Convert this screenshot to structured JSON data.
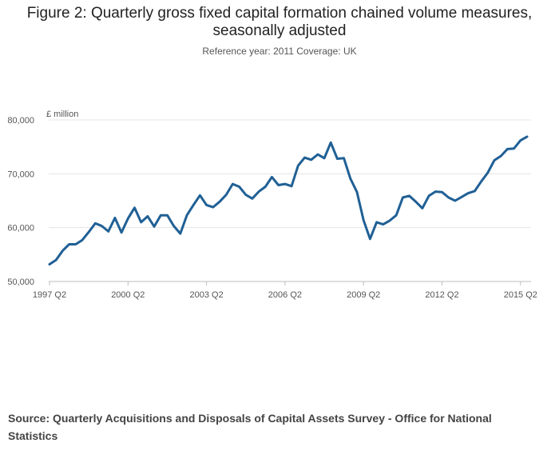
{
  "chart_data": {
    "type": "line",
    "title": "Figure 2: Quarterly gross fixed capital formation chained volume measures, seasonally adjusted",
    "subtitle": "Reference year: 2011 Coverage: UK",
    "unit_label": "£ million",
    "ylim": [
      50000,
      80000
    ],
    "yticks": [
      50000,
      60000,
      70000,
      80000
    ],
    "ytick_labels": [
      "50,000",
      "60,000",
      "70,000",
      "80,000"
    ],
    "xtick_labels": [
      "1997 Q2",
      "2000 Q2",
      "2003 Q2",
      "2006 Q2",
      "2009 Q2",
      "2012 Q2",
      "2015 Q2"
    ],
    "xtick_indices": [
      0,
      12,
      24,
      36,
      48,
      60,
      72
    ],
    "grid": true,
    "series": [
      {
        "name": "Gross fixed capital formation",
        "color": "#206095",
        "values": [
          53200,
          54000,
          55700,
          56900,
          56900,
          57700,
          59200,
          60800,
          60300,
          59300,
          61800,
          59100,
          61700,
          63700,
          61000,
          62100,
          60200,
          62300,
          62300,
          60300,
          58900,
          62300,
          64200,
          66000,
          64200,
          63800,
          64800,
          66100,
          68100,
          67600,
          66100,
          65400,
          66700,
          67600,
          69400,
          67900,
          68100,
          67700,
          71500,
          73000,
          72600,
          73600,
          72900,
          75800,
          72800,
          72900,
          69100,
          66600,
          61400,
          57900,
          61000,
          60600,
          61300,
          62300,
          65600,
          65900,
          64800,
          63600,
          65900,
          66700,
          66600,
          65600,
          65000,
          65700,
          66400,
          66800,
          68600,
          70200,
          72500,
          73300,
          74600,
          74700,
          76200,
          76900
        ]
      }
    ]
  },
  "source": "Source: Quarterly Acquisitions and Disposals of Capital Assets Survey - Office for National Statistics"
}
